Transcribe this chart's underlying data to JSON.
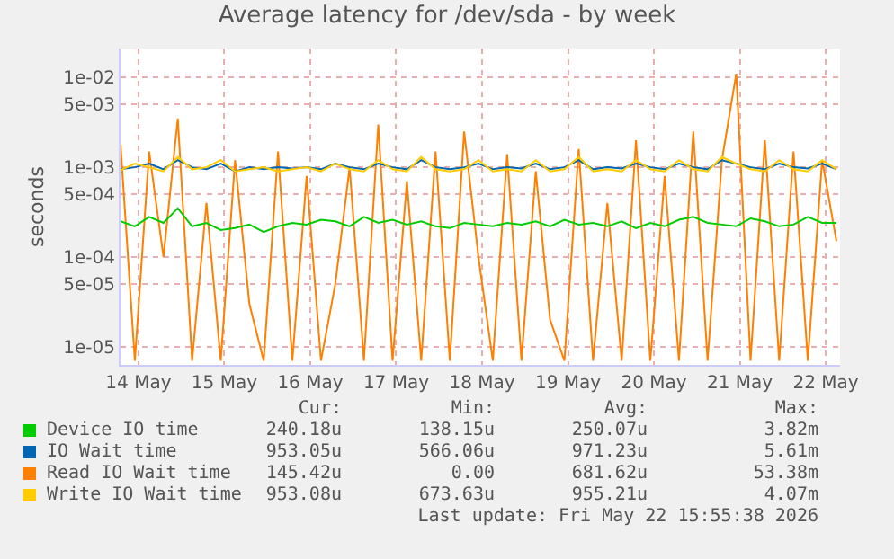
{
  "chart_data": {
    "type": "line",
    "title": "Average latency for /dev/sda - by week",
    "ylabel": "seconds",
    "log": "y",
    "grid": true,
    "legend": "bottom",
    "marker": "none",
    "line_style": "solid",
    "xlim": [
      "2026-05-14T07:00",
      "2026-05-22T16:00"
    ],
    "xticks": [
      {
        "value": "2026-05-14T12:00",
        "label": "14 May"
      },
      {
        "value": "2026-05-15T12:00",
        "label": "15 May"
      },
      {
        "value": "2026-05-16T12:00",
        "label": "16 May"
      },
      {
        "value": "2026-05-17T12:00",
        "label": "17 May"
      },
      {
        "value": "2026-05-18T12:00",
        "label": "18 May"
      },
      {
        "value": "2026-05-19T12:00",
        "label": "19 May"
      },
      {
        "value": "2026-05-20T12:00",
        "label": "20 May"
      },
      {
        "value": "2026-05-21T12:00",
        "label": "21 May"
      },
      {
        "value": "2026-05-22T12:00",
        "label": "22 May"
      }
    ],
    "ylim": [
      6.3e-06,
      0.021
    ],
    "yticks": [
      {
        "value": 1e-05,
        "label": "1e-05"
      },
      {
        "value": 5e-05,
        "label": "5e-05"
      },
      {
        "value": 0.0001,
        "label": "1e-04"
      },
      {
        "value": 0.0005,
        "label": "5e-04"
      },
      {
        "value": 0.001,
        "label": "1e-03"
      },
      {
        "value": 0.005,
        "label": "5e-03"
      },
      {
        "value": 0.01,
        "label": "1e-02"
      }
    ],
    "x": [
      "2026-05-14T07:00",
      "2026-05-14T11:00",
      "2026-05-14T15:00",
      "2026-05-14T19:00",
      "2026-05-14T23:00",
      "2026-05-15T03:00",
      "2026-05-15T07:00",
      "2026-05-15T11:00",
      "2026-05-15T15:00",
      "2026-05-15T19:00",
      "2026-05-15T23:00",
      "2026-05-16T03:00",
      "2026-05-16T07:00",
      "2026-05-16T11:00",
      "2026-05-16T15:00",
      "2026-05-16T19:00",
      "2026-05-16T23:00",
      "2026-05-17T03:00",
      "2026-05-17T07:00",
      "2026-05-17T11:00",
      "2026-05-17T15:00",
      "2026-05-17T19:00",
      "2026-05-17T23:00",
      "2026-05-18T03:00",
      "2026-05-18T07:00",
      "2026-05-18T11:00",
      "2026-05-18T15:00",
      "2026-05-18T19:00",
      "2026-05-18T23:00",
      "2026-05-19T03:00",
      "2026-05-19T07:00",
      "2026-05-19T11:00",
      "2026-05-19T15:00",
      "2026-05-19T19:00",
      "2026-05-19T23:00",
      "2026-05-20T03:00",
      "2026-05-20T07:00",
      "2026-05-20T11:00",
      "2026-05-20T15:00",
      "2026-05-20T19:00",
      "2026-05-20T23:00",
      "2026-05-21T03:00",
      "2026-05-21T07:00",
      "2026-05-21T11:00",
      "2026-05-21T15:00",
      "2026-05-21T19:00",
      "2026-05-21T23:00",
      "2026-05-22T03:00",
      "2026-05-22T07:00",
      "2026-05-22T11:00",
      "2026-05-22T15:00"
    ],
    "series": [
      {
        "name": "Read IO Wait time",
        "color": "#ff7f00",
        "values": [
          0.0018,
          7e-06,
          0.0015,
          0.0001,
          0.0035,
          7e-06,
          0.0004,
          7e-06,
          0.0012,
          3e-05,
          7e-06,
          0.0015,
          7e-06,
          0.0008,
          7e-06,
          5e-05,
          0.001,
          7e-06,
          0.003,
          7e-06,
          0.0007,
          7e-06,
          0.0015,
          7e-06,
          0.0025,
          0.0001,
          7e-06,
          0.0014,
          7e-06,
          0.0009,
          2e-05,
          7e-06,
          0.0016,
          7e-06,
          0.0004,
          7e-06,
          0.002,
          7e-06,
          0.0008,
          7e-06,
          0.0025,
          7e-06,
          0.0012,
          0.011,
          7e-06,
          0.002,
          7e-06,
          0.0015,
          7e-06,
          0.0012,
          0.00015
        ]
      },
      {
        "name": "Device IO time",
        "color": "#00cc00",
        "values": [
          0.00025,
          0.00022,
          0.00028,
          0.00024,
          0.00035,
          0.00022,
          0.00024,
          0.0002,
          0.00021,
          0.00023,
          0.00019,
          0.00022,
          0.00024,
          0.00023,
          0.00026,
          0.00025,
          0.00022,
          0.00028,
          0.00024,
          0.00026,
          0.00023,
          0.00025,
          0.00022,
          0.00021,
          0.00024,
          0.00023,
          0.00022,
          0.00024,
          0.00023,
          0.00025,
          0.00022,
          0.00026,
          0.00023,
          0.00024,
          0.00022,
          0.00025,
          0.00021,
          0.00024,
          0.00022,
          0.00026,
          0.00028,
          0.00024,
          0.00023,
          0.00022,
          0.00027,
          0.00025,
          0.00022,
          0.00023,
          0.00028,
          0.00024,
          0.00024
        ]
      },
      {
        "name": "IO Wait time",
        "color": "#0066b3",
        "values": [
          0.00095,
          0.001,
          0.0011,
          0.00095,
          0.0012,
          0.001,
          0.00095,
          0.0011,
          0.0009,
          0.001,
          0.00095,
          0.001,
          0.00097,
          0.001,
          0.00095,
          0.0011,
          0.001,
          0.00095,
          0.0011,
          0.001,
          0.00095,
          0.0012,
          0.001,
          0.00095,
          0.001,
          0.0011,
          0.00095,
          0.001,
          0.00097,
          0.0011,
          0.00095,
          0.001,
          0.0012,
          0.00095,
          0.001,
          0.00097,
          0.0011,
          0.001,
          0.00095,
          0.0011,
          0.001,
          0.00095,
          0.0012,
          0.0011,
          0.001,
          0.00095,
          0.0011,
          0.001,
          0.00097,
          0.0011,
          0.00095
        ]
      },
      {
        "name": "Write IO Wait time",
        "color": "#ffcc00",
        "values": [
          0.00093,
          0.0011,
          0.001,
          0.0009,
          0.0013,
          0.00095,
          0.001,
          0.0012,
          0.0009,
          0.00095,
          0.001,
          0.0009,
          0.00095,
          0.001,
          0.0009,
          0.0011,
          0.00095,
          0.0009,
          0.0012,
          0.00095,
          0.0009,
          0.0013,
          0.00095,
          0.0009,
          0.00095,
          0.0012,
          0.0009,
          0.00095,
          0.0009,
          0.0012,
          0.0009,
          0.00095,
          0.0013,
          0.0009,
          0.00095,
          0.0009,
          0.0012,
          0.00095,
          0.0009,
          0.0012,
          0.00095,
          0.0009,
          0.0013,
          0.0011,
          0.00095,
          0.0009,
          0.0012,
          0.00095,
          0.0009,
          0.0012,
          0.00095
        ]
      }
    ],
    "annotations": [
      "Cur:",
      "Min:",
      "Avg:",
      "Max:",
      "240.18u",
      "138.15u",
      "250.07u",
      "3.82m",
      "953.05u",
      "566.06u",
      "971.23u",
      "5.61m",
      "145.42u",
      "0.00",
      "681.62u",
      "53.38m",
      "953.08u",
      "673.63u",
      "955.21u",
      "4.07m",
      "Last update: Fri May 22 15:55:38 2026"
    ]
  }
}
